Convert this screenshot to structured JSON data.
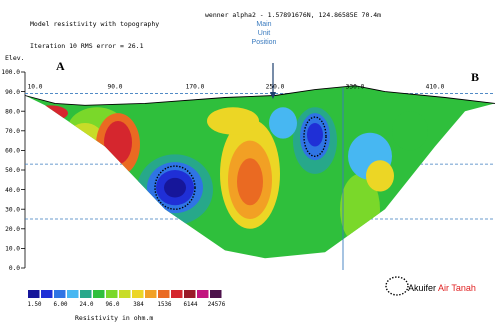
{
  "header": {
    "title": "Model resistivity with topography",
    "iteration": "Iteration 10 RMS error = 26.1",
    "location": "wenner alpha2 - 1.57891676N, 124.86585E 70.4m"
  },
  "annotations": {
    "elev_label": "Elev.",
    "point_a": "A",
    "point_b": "B",
    "unit_position": [
      "Main",
      "Unit",
      "Position"
    ],
    "aquifer_label_1": "Akuifer ",
    "aquifer_label_2": "Air Tanah",
    "colorscale_title": "Resistivity in ohm.m"
  },
  "colors": {
    "palette": [
      "#16169a",
      "#1f2fd6",
      "#2f74e4",
      "#47b7f2",
      "#27a88a",
      "#2fbf3c",
      "#7ad82a",
      "#c8dc28",
      "#ecd625",
      "#f2a024",
      "#ea6a22",
      "#d5262e",
      "#9a1a28",
      "#c2137e",
      "#4d124b"
    ],
    "marker": "#3a7bbf",
    "dashed_line": "#3a7bbf"
  },
  "chart_data": {
    "type": "heatmap",
    "title": "Model resistivity with topography",
    "xlabel": "",
    "ylabel": "Elev.",
    "x_ticks": [
      {
        "value": 10,
        "label": "10.0"
      },
      {
        "value": 90,
        "label": "90.0"
      },
      {
        "value": 170,
        "label": "170.0"
      },
      {
        "value": 250,
        "label": "250.0"
      },
      {
        "value": 330,
        "label": "330.0"
      },
      {
        "value": 410,
        "label": "410.0"
      }
    ],
    "y_ticks": [
      {
        "value": 100,
        "label": "100.0"
      },
      {
        "value": 90,
        "label": "90.0"
      },
      {
        "value": 80,
        "label": "80.0"
      },
      {
        "value": 70,
        "label": "70.0"
      },
      {
        "value": 60,
        "label": "60.0"
      },
      {
        "value": 50,
        "label": "50.0"
      },
      {
        "value": 40,
        "label": "40.0"
      },
      {
        "value": 30,
        "label": "30.0"
      },
      {
        "value": 20,
        "label": "20.0"
      },
      {
        "value": 10,
        "label": "10.0"
      },
      {
        "value": 0,
        "label": "0.0"
      }
    ],
    "xlim": [
      0,
      470
    ],
    "ylim": [
      0,
      100
    ],
    "scale_units": "ohm.m",
    "scale_labels": [
      "1.50",
      "6.00",
      "24.0",
      "96.0",
      "384",
      "1536",
      "6144",
      "24576"
    ],
    "main_unit_position_x": 248,
    "dashed_guides_elevation": [
      89,
      53,
      25
    ],
    "vertical_guide_x": 318,
    "topography": [
      {
        "x": 0,
        "elev": 88
      },
      {
        "x": 30,
        "elev": 84
      },
      {
        "x": 60,
        "elev": 83
      },
      {
        "x": 120,
        "elev": 84
      },
      {
        "x": 200,
        "elev": 87
      },
      {
        "x": 250,
        "elev": 88
      },
      {
        "x": 290,
        "elev": 91
      },
      {
        "x": 330,
        "elev": 93
      },
      {
        "x": 360,
        "elev": 90
      },
      {
        "x": 420,
        "elev": 87
      },
      {
        "x": 470,
        "elev": 84
      }
    ],
    "section_bottom": [
      {
        "x": 20,
        "elev": 83
      },
      {
        "x": 80,
        "elev": 62
      },
      {
        "x": 140,
        "elev": 30
      },
      {
        "x": 200,
        "elev": 9
      },
      {
        "x": 240,
        "elev": 5
      },
      {
        "x": 300,
        "elev": 8
      },
      {
        "x": 360,
        "elev": 30
      },
      {
        "x": 410,
        "elev": 62
      },
      {
        "x": 440,
        "elev": 80
      }
    ],
    "anomalies": [
      {
        "x": 25,
        "elev": 79,
        "rx": 18,
        "ry": 4,
        "level": 11
      },
      {
        "x": 72,
        "elev": 70,
        "rx": 30,
        "ry": 12,
        "level": 6
      },
      {
        "x": 60,
        "elev": 66,
        "rx": 18,
        "ry": 8,
        "level": 7
      },
      {
        "x": 93,
        "elev": 63,
        "rx": 22,
        "ry": 16,
        "level": 10
      },
      {
        "x": 93,
        "elev": 64,
        "rx": 14,
        "ry": 11,
        "level": 11
      },
      {
        "x": 150,
        "elev": 40,
        "rx": 38,
        "ry": 18,
        "level": 4
      },
      {
        "x": 150,
        "elev": 41,
        "rx": 28,
        "ry": 13,
        "level": 2
      },
      {
        "x": 150,
        "elev": 41,
        "rx": 19,
        "ry": 9,
        "level": 1
      },
      {
        "x": 150,
        "elev": 41,
        "rx": 11,
        "ry": 5,
        "level": 0
      },
      {
        "x": 225,
        "elev": 48,
        "rx": 30,
        "ry": 28,
        "level": 8
      },
      {
        "x": 225,
        "elev": 45,
        "rx": 22,
        "ry": 20,
        "level": 9
      },
      {
        "x": 225,
        "elev": 44,
        "rx": 13,
        "ry": 12,
        "level": 10
      },
      {
        "x": 208,
        "elev": 75,
        "rx": 26,
        "ry": 7,
        "level": 8
      },
      {
        "x": 290,
        "elev": 65,
        "rx": 22,
        "ry": 17,
        "level": 4
      },
      {
        "x": 290,
        "elev": 67,
        "rx": 15,
        "ry": 12,
        "level": 2
      },
      {
        "x": 290,
        "elev": 68,
        "rx": 8,
        "ry": 6,
        "level": 1
      },
      {
        "x": 258,
        "elev": 74,
        "rx": 14,
        "ry": 8,
        "level": 3
      },
      {
        "x": 335,
        "elev": 30,
        "rx": 20,
        "ry": 18,
        "level": 6
      },
      {
        "x": 345,
        "elev": 57,
        "rx": 22,
        "ry": 12,
        "level": 3
      },
      {
        "x": 355,
        "elev": 47,
        "rx": 14,
        "ry": 8,
        "level": 8
      },
      {
        "x": 385,
        "elev": 70,
        "rx": 18,
        "ry": 10,
        "level": 5
      }
    ],
    "aquifer_outlines": [
      {
        "x": 150,
        "elev": 41,
        "rx": 20,
        "ry": 11
      },
      {
        "x": 290,
        "elev": 67,
        "rx": 11,
        "ry": 10
      }
    ]
  }
}
